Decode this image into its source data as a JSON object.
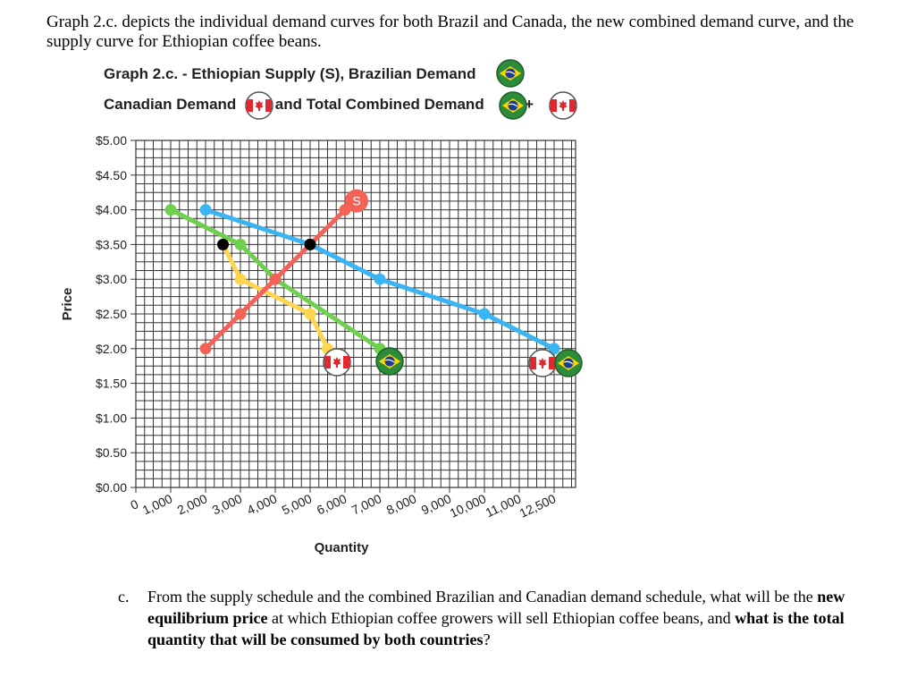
{
  "intro": "Graph 2.c. depicts the individual demand curves for both Brazil and Canada, the new combined demand curve, and the supply curve for Ethiopian coffee beans.",
  "chart_data": {
    "type": "line",
    "title_line1": "Graph 2.c. - Ethiopian Supply (S), Brazilian Demand",
    "title_line2_a": "Canadian Demand",
    "title_line2_b": "and Total Combined Demand",
    "title_plus": "+",
    "xlabel": "Quantity",
    "ylabel": "Price",
    "x_ticks": [
      "0",
      "1,000",
      "2,000",
      "3,000",
      "4,000",
      "5,000",
      "6,000",
      "7,000",
      "8,000",
      "9,000",
      "10,000",
      "11,000",
      "12,500"
    ],
    "y_ticks": [
      "$0.00",
      "$0.50",
      "$1.00",
      "$1.50",
      "$2.00",
      "$2.50",
      "$3.00",
      "$3.50",
      "$4.00",
      "$4.50",
      "$5.00"
    ],
    "ylim": [
      0,
      5
    ],
    "xlim": [
      0,
      12500
    ],
    "grid": true,
    "series": [
      {
        "key": "supply",
        "label": "S",
        "color": "#f26257",
        "x": [
          2000,
          3000,
          4000,
          5000,
          6000
        ],
        "y": [
          2.0,
          2.5,
          3.0,
          3.5,
          4.0
        ]
      },
      {
        "key": "brazil",
        "color": "#6fcf4f",
        "x": [
          1000,
          3000,
          4000,
          7000
        ],
        "y": [
          4.0,
          3.5,
          3.0,
          2.0
        ]
      },
      {
        "key": "canada",
        "color": "#ffd54f",
        "x": [
          2500,
          3000,
          5000,
          5500
        ],
        "y": [
          3.5,
          3.0,
          2.5,
          2.0
        ]
      },
      {
        "key": "combined",
        "color": "#3ab4f2",
        "x": [
          2000,
          5000,
          7000,
          10000,
          12000
        ],
        "y": [
          4.0,
          3.5,
          3.0,
          2.5,
          2.0
        ]
      }
    ],
    "equilibrium_points": [
      {
        "x": 2500,
        "y": 3.5
      },
      {
        "x": 5000,
        "y": 3.5
      }
    ]
  },
  "question": {
    "label": "c.",
    "part1": "From the supply schedule and the combined Brazilian and Canadian demand schedule, what will be the ",
    "bold1": "new equilibrium price",
    "part2": " at which Ethiopian coffee growers will sell Ethiopian coffee beans, and ",
    "bold2": "what is the total quantity that will be consumed by both countries",
    "part3": "?"
  },
  "colors": {
    "brazil_green": "#2e8b3a",
    "brazil_yellow": "#ffd600",
    "brazil_blue": "#1a3d8f",
    "canada_red": "#e0282e",
    "grid": "#333333"
  }
}
